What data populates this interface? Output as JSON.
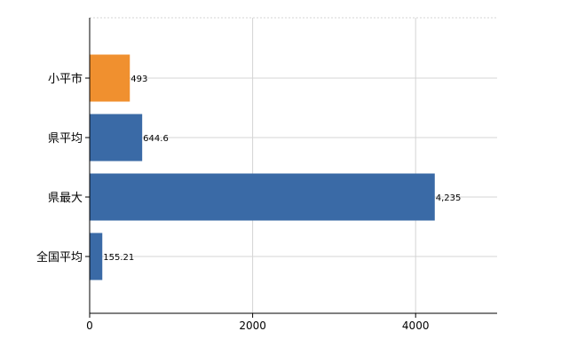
{
  "chart_data": {
    "type": "bar",
    "orientation": "horizontal",
    "categories": [
      "小平市",
      "県平均",
      "県最大",
      "全国平均"
    ],
    "values": [
      493,
      644.6,
      4235,
      155.21
    ],
    "value_labels": [
      "493",
      "644.6",
      "4,235",
      "155.21"
    ],
    "bar_colors": [
      "#f0902f",
      "#3a6aa6",
      "#3a6aa6",
      "#3a6aa6"
    ],
    "xlim": [
      0,
      5000
    ],
    "x_ticks": [
      0,
      2000,
      4000
    ],
    "x_tick_labels": [
      "0",
      "2000",
      "4000"
    ],
    "grid": true,
    "title": "",
    "xlabel": "",
    "ylabel": ""
  }
}
